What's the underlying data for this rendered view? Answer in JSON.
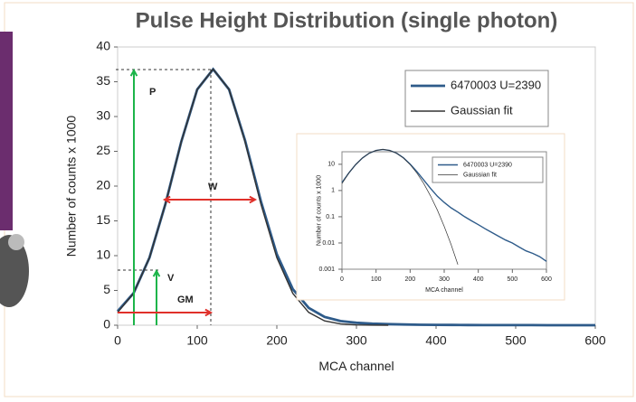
{
  "chart_data": [
    {
      "type": "line",
      "title": "Pulse Height Distribution (single photon)",
      "xlabel": "MCA channel",
      "ylabel": "Number of counts x 1000",
      "x": [
        0,
        20,
        40,
        60,
        80,
        100,
        120,
        140,
        160,
        180,
        200,
        220,
        240,
        260,
        280,
        300,
        320,
        340,
        360,
        380,
        400,
        420,
        440,
        460,
        480,
        500,
        520,
        540,
        560,
        580,
        600
      ],
      "series": [
        {
          "name": "6470003 U=2390",
          "color": "#2e5b8a",
          "values": [
            2,
            4.6,
            9.7,
            17.4,
            26.4,
            33.9,
            36.8,
            33.9,
            26.6,
            17.8,
            10.2,
            5.2,
            2.5,
            1.2,
            0.6,
            0.35,
            0.22,
            0.15,
            0.1,
            0.07,
            0.05,
            0.035,
            0.025,
            0.018,
            0.013,
            0.01,
            0.007,
            0.005,
            0.004,
            0.003,
            0.002
          ]
        },
        {
          "name": "Gaussian fit",
          "color": "#333333",
          "values": [
            1.84,
            4.59,
            9.7,
            17.4,
            26.4,
            33.9,
            36.8,
            33.9,
            26.4,
            17.4,
            9.7,
            4.59,
            1.84,
            0.62,
            0.178,
            0.043,
            0.0089,
            0.0015,
            null,
            null,
            null,
            null,
            null,
            null,
            null,
            null,
            null,
            null,
            null,
            null,
            null
          ]
        }
      ],
      "xlim": [
        0,
        600
      ],
      "ylim": [
        0,
        40
      ],
      "xticks": [
        0,
        100,
        200,
        300,
        400,
        500,
        600
      ],
      "yticks": [
        0,
        5,
        10,
        15,
        20,
        25,
        30,
        35,
        40
      ],
      "legend": "upper right",
      "annotations": [
        "P",
        "W",
        "V",
        "GM"
      ]
    },
    {
      "type": "line",
      "xlabel": "MCA channel",
      "ylabel": "Number of counts x 1000",
      "x": [
        0,
        20,
        40,
        60,
        80,
        100,
        120,
        140,
        160,
        180,
        200,
        220,
        240,
        260,
        280,
        300,
        320,
        340,
        360,
        380,
        400,
        420,
        440,
        460,
        480,
        500,
        520,
        540,
        560,
        580,
        600
      ],
      "series": [
        {
          "name": "6470003 U=2390",
          "color": "#2e5b8a",
          "values": [
            2,
            4.6,
            9.7,
            17.4,
            26.4,
            33.9,
            36.8,
            33.9,
            26.6,
            17.8,
            10.2,
            5.2,
            2.5,
            1.2,
            0.6,
            0.35,
            0.22,
            0.15,
            0.1,
            0.07,
            0.05,
            0.035,
            0.025,
            0.018,
            0.013,
            0.01,
            0.007,
            0.005,
            0.004,
            0.003,
            0.002
          ]
        },
        {
          "name": "Gaussian fit",
          "color": "#333333",
          "values": [
            1.84,
            4.59,
            9.7,
            17.4,
            26.4,
            33.9,
            36.8,
            33.9,
            26.4,
            17.4,
            9.7,
            4.59,
            1.84,
            0.62,
            0.178,
            0.043,
            0.0089,
            0.0015,
            null,
            null,
            null,
            null,
            null,
            null,
            null,
            null,
            null,
            null,
            null,
            null,
            null
          ]
        }
      ],
      "xlim": [
        0,
        600
      ],
      "ylim": [
        0.001,
        30
      ],
      "log_y": true,
      "xticks": [
        0,
        100,
        200,
        300,
        400,
        500,
        600
      ],
      "yticks": [
        0.001,
        0.01,
        0.1,
        1,
        10
      ],
      "legend": "upper right"
    }
  ]
}
